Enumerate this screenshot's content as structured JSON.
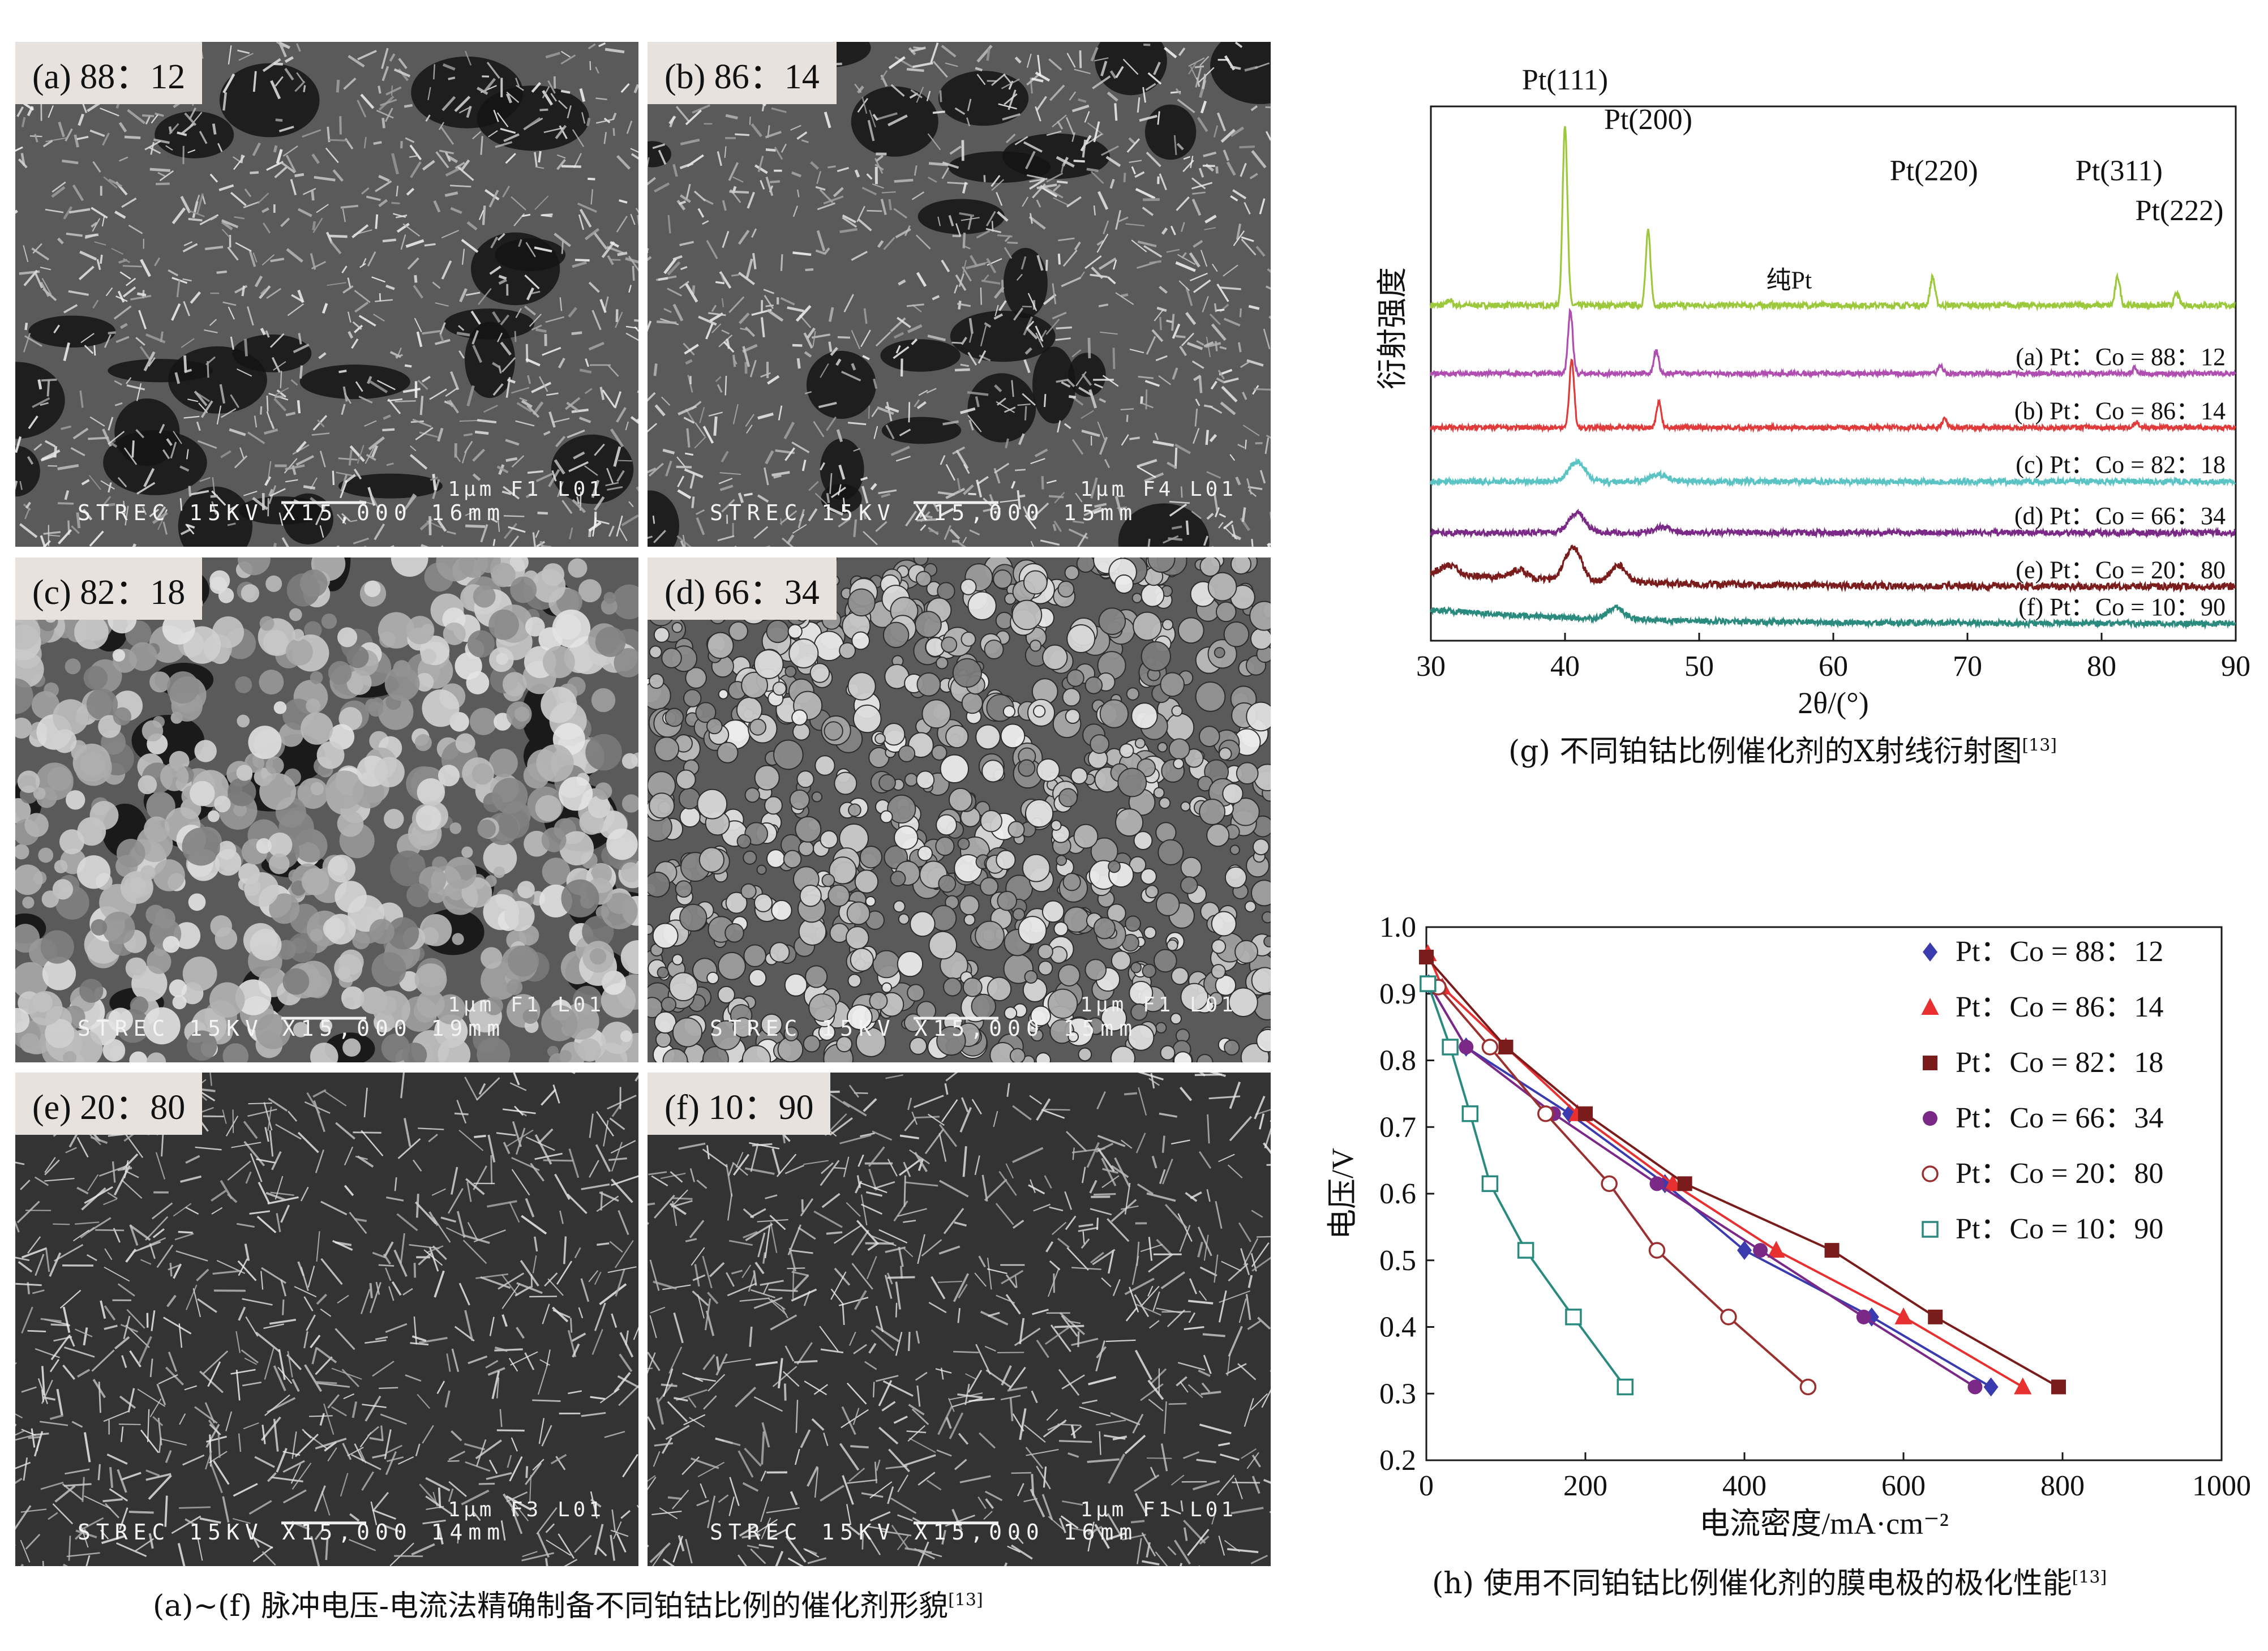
{
  "sem_panels": [
    {
      "label": "(a) 88：12",
      "scale_text": "STREC  15KV  X15,000  16mm",
      "bar_text": "1µm F1 L01",
      "texture": "flake"
    },
    {
      "label": "(b) 86：14",
      "scale_text": "STREC  15KV  X15,000  15mm",
      "bar_text": "1µm F4 L01",
      "texture": "flake"
    },
    {
      "label": "(c) 82：18",
      "scale_text": "STREC  15KV  X15,000  19mm",
      "bar_text": "1µm F1 L01",
      "texture": "globule"
    },
    {
      "label": "(d) 66：34",
      "scale_text": "STREC  15KV  X15,000  15mm",
      "bar_text": "1µm F1 L01",
      "texture": "grain"
    },
    {
      "label": "(e) 20：80",
      "scale_text": "STREC  15KV  X15,000  14mm",
      "bar_text": "1µm F3 L01",
      "texture": "mesh"
    },
    {
      "label": "(f) 10：90",
      "scale_text": "STREC  15KV  X15,000  16mm",
      "bar_text": "1µm F1 L01",
      "texture": "mesh"
    }
  ],
  "captions": {
    "sem": "(a)~(f) 脉冲电压-电流法精确制备不同铂钴比例的催化剂形貌",
    "sem_ref": "[13]",
    "xrd": "(g) 不同铂钴比例催化剂的X射线衍射图",
    "xrd_ref": "[13]",
    "pol": "(h) 使用不同铂钴比例催化剂的膜电极的极化性能",
    "pol_ref": "[13]"
  },
  "chart_data": [
    {
      "type": "line",
      "title": "",
      "xlabel": "2θ/(°)",
      "ylabel": "衍射强度",
      "xlim": [
        30,
        90
      ],
      "xticks": [
        30,
        40,
        50,
        60,
        70,
        80,
        90
      ],
      "y_axis": "intensity, arbitrary units, no tick labels",
      "peak_labels": [
        {
          "text": "Pt(111)",
          "x": 40
        },
        {
          "text": "Pt(200)",
          "x": 46.2
        },
        {
          "text": "Pt(220)",
          "x": 67.5
        },
        {
          "text": "Pt(311)",
          "x": 81.3
        },
        {
          "text": "Pt(222)",
          "x": 85.8
        }
      ],
      "series": [
        {
          "name": "纯Pt",
          "color": "#9cc83c",
          "offset": 5.9,
          "peaks": [
            [
              31.4,
              0.1
            ],
            [
              40.0,
              3.2
            ],
            [
              46.2,
              1.3
            ],
            [
              67.4,
              0.5
            ],
            [
              81.2,
              0.5
            ],
            [
              85.6,
              0.2
            ]
          ],
          "noise": 0.05
        },
        {
          "name": "(a) Pt：Co = 88：12",
          "color": "#b04db0",
          "offset": 4.7,
          "peaks": [
            [
              40.4,
              1.1
            ],
            [
              46.8,
              0.4
            ],
            [
              68.0,
              0.15
            ],
            [
              82.5,
              0.1
            ]
          ],
          "noise": 0.04
        },
        {
          "name": "(b) Pt：Co = 86：14",
          "color": "#e03a3a",
          "offset": 3.75,
          "peaks": [
            [
              40.5,
              1.2
            ],
            [
              47.0,
              0.45
            ],
            [
              68.3,
              0.15
            ],
            [
              82.6,
              0.1
            ]
          ],
          "noise": 0.04
        },
        {
          "name": "(c) Pt：Co = 82：18",
          "color": "#5ac4c4",
          "offset": 2.8,
          "peaks": [
            [
              40.9,
              0.35
            ],
            [
              47.0,
              0.12
            ]
          ],
          "noise": 0.05
        },
        {
          "name": "(d) Pt：Co = 66：34",
          "color": "#7a2a86",
          "offset": 1.9,
          "peaks": [
            [
              40.9,
              0.35
            ],
            [
              47.3,
              0.1
            ]
          ],
          "noise": 0.05
        },
        {
          "name": "(e) Pt：Co = 20：80",
          "color": "#7a1c1c",
          "offset": 0.95,
          "peaks": [
            [
              31.4,
              0.15
            ],
            [
              36.6,
              0.15
            ],
            [
              40.6,
              0.6
            ],
            [
              44.0,
              0.3
            ]
          ],
          "noise": 0.06
        },
        {
          "name": "(f) Pt：Co = 10：90",
          "color": "#2a8a7e",
          "offset": 0.3,
          "peaks": [
            [
              43.8,
              0.2
            ]
          ],
          "noise": 0.05
        }
      ]
    },
    {
      "type": "line",
      "title": "",
      "xlabel": "电流密度/mA·cm⁻²",
      "ylabel": "电压/V",
      "xlim": [
        0,
        1000
      ],
      "ylim": [
        0.2,
        1.0
      ],
      "xticks": [
        0,
        200,
        400,
        600,
        800,
        1000
      ],
      "yticks": [
        0.2,
        0.3,
        0.4,
        0.5,
        0.6,
        0.7,
        0.8,
        0.9,
        1.0
      ],
      "legend_position": "top-right",
      "series": [
        {
          "name": "Pt：Co = 88：12",
          "color": "#3b3bb0",
          "marker": "diamond",
          "x": [
            3,
            50,
            180,
            300,
            400,
            560,
            710
          ],
          "y": [
            0.915,
            0.82,
            0.72,
            0.615,
            0.515,
            0.415,
            0.31
          ]
        },
        {
          "name": "Pt：Co = 86：14",
          "color": "#e83030",
          "marker": "triangle",
          "x": [
            2,
            20,
            100,
            190,
            310,
            440,
            600,
            750
          ],
          "y": [
            0.96,
            0.91,
            0.82,
            0.72,
            0.615,
            0.515,
            0.415,
            0.31
          ]
        },
        {
          "name": "Pt：Co = 82：18",
          "color": "#7a1c1c",
          "marker": "square",
          "x": [
            0,
            100,
            200,
            325,
            510,
            640,
            795
          ],
          "y": [
            0.955,
            0.82,
            0.72,
            0.615,
            0.515,
            0.415,
            0.31
          ]
        },
        {
          "name": "Pt：Co = 66：34",
          "color": "#7a2a86",
          "marker": "circle",
          "x": [
            3,
            50,
            160,
            290,
            420,
            550,
            690
          ],
          "y": [
            0.915,
            0.82,
            0.72,
            0.615,
            0.515,
            0.415,
            0.31
          ]
        },
        {
          "name": "Pt：Co = 20：80",
          "color": "#9a3030",
          "marker": "circle-open",
          "x": [
            15,
            80,
            150,
            230,
            290,
            380,
            480
          ],
          "y": [
            0.91,
            0.82,
            0.72,
            0.615,
            0.515,
            0.415,
            0.31
          ]
        },
        {
          "name": "Pt：Co = 10：90",
          "color": "#2a8a7e",
          "marker": "square-open",
          "x": [
            2,
            30,
            55,
            80,
            125,
            185,
            250
          ],
          "y": [
            0.915,
            0.82,
            0.72,
            0.615,
            0.515,
            0.415,
            0.31
          ]
        }
      ]
    }
  ]
}
